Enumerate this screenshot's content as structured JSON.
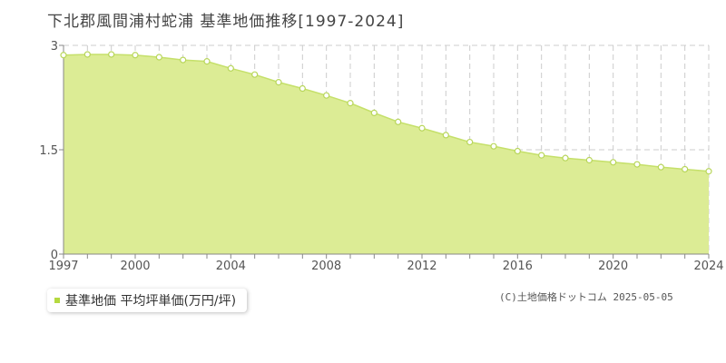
{
  "page": {
    "title": "下北郡風間浦村蛇浦 基準地価推移[1997-2024]",
    "credit": "(C)土地価格ドットコム 2025-05-05"
  },
  "colors": {
    "fill": "#dcec95",
    "line": "#c5e06a",
    "marker_fill": "#ffffff",
    "marker_stroke": "#b8d65a",
    "grid": "#cccccc",
    "axis": "#888888",
    "legend_swatch": "#b5d940"
  },
  "chart_data": {
    "type": "area",
    "title": "下北郡風間浦村蛇浦 基準地価推移[1997-2024]",
    "xlabel": "",
    "ylabel": "",
    "xlim": [
      1997,
      2024
    ],
    "ylim": [
      0,
      3
    ],
    "x_ticks": [
      1997,
      2000,
      2004,
      2008,
      2012,
      2016,
      2020,
      2024
    ],
    "y_ticks": [
      {
        "value": 0,
        "label": "0"
      },
      {
        "value": 1.5,
        "label": "1.5"
      },
      {
        "value": 3,
        "label": "3"
      }
    ],
    "grid": true,
    "legend_position": "bottom-left",
    "series": [
      {
        "name": "基準地価 平均坪単価(万円/坪)",
        "x": [
          1997,
          1998,
          1999,
          2000,
          2001,
          2002,
          2003,
          2004,
          2005,
          2006,
          2007,
          2008,
          2009,
          2010,
          2011,
          2012,
          2013,
          2014,
          2015,
          2016,
          2017,
          2018,
          2019,
          2020,
          2021,
          2022,
          2023,
          2024
        ],
        "values": [
          2.86,
          2.87,
          2.87,
          2.86,
          2.83,
          2.79,
          2.77,
          2.67,
          2.58,
          2.47,
          2.38,
          2.28,
          2.17,
          2.03,
          1.9,
          1.81,
          1.71,
          1.61,
          1.55,
          1.48,
          1.42,
          1.38,
          1.35,
          1.32,
          1.29,
          1.25,
          1.22,
          1.19
        ]
      }
    ]
  }
}
